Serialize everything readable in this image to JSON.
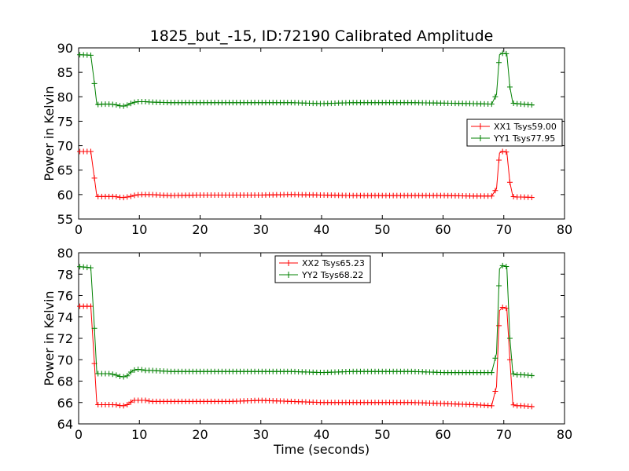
{
  "title": "1825_but_-15, ID:72190 Calibrated Amplitude",
  "chart_data": [
    {
      "type": "line",
      "ylabel": "Power in Kelvin",
      "xlabel": "",
      "xlim": [
        0,
        80
      ],
      "ylim": [
        55,
        90
      ],
      "xticks": [
        0,
        10,
        20,
        30,
        40,
        50,
        60,
        70,
        80
      ],
      "yticks": [
        55,
        60,
        65,
        70,
        75,
        80,
        85,
        90
      ],
      "marker": "+",
      "legend_placement": "right",
      "series": [
        {
          "name": "XX1 Tsys59.00",
          "color": "#ff0000",
          "x": [
            0.2,
            2,
            2.5,
            3,
            4,
            5,
            6,
            7,
            7.5,
            8,
            8.5,
            9,
            9.5,
            10,
            11,
            12,
            15,
            20,
            25,
            30,
            35,
            40,
            45,
            50,
            55,
            60,
            65,
            68,
            68.8,
            69.3,
            69.8,
            70.5,
            71,
            71.5,
            72,
            73,
            75
          ],
          "y": [
            68.8,
            68.8,
            64.3,
            59.6,
            59.6,
            59.6,
            59.6,
            59.4,
            59.4,
            59.5,
            59.6,
            59.8,
            59.9,
            60.0,
            60.0,
            60.0,
            59.8,
            59.9,
            59.9,
            59.9,
            60.0,
            59.9,
            59.8,
            59.8,
            59.8,
            59.8,
            59.7,
            59.7,
            61.2,
            68.5,
            68.8,
            68.7,
            62.5,
            59.6,
            59.5,
            59.5,
            59.4
          ]
        },
        {
          "name": "YY1 Tsys77.95",
          "color": "#008000",
          "x": [
            0.2,
            2,
            2.5,
            3,
            4,
            5,
            6,
            7,
            7.5,
            8,
            8.5,
            9,
            9.5,
            10,
            11,
            12,
            15,
            20,
            25,
            30,
            35,
            40,
            45,
            50,
            55,
            60,
            65,
            68,
            68.8,
            69.3,
            69.8,
            70.5,
            71,
            71.5,
            72,
            73,
            75
          ],
          "y": [
            88.6,
            88.5,
            83.8,
            78.4,
            78.5,
            78.5,
            78.4,
            78.1,
            78.1,
            78.3,
            78.6,
            78.8,
            79.0,
            79.0,
            79.0,
            78.9,
            78.8,
            78.8,
            78.8,
            78.8,
            78.8,
            78.6,
            78.8,
            78.8,
            78.8,
            78.7,
            78.6,
            78.5,
            80.5,
            88.6,
            88.9,
            88.8,
            82.0,
            78.7,
            78.6,
            78.5,
            78.3
          ]
        }
      ]
    },
    {
      "type": "line",
      "ylabel": "Power in Kelvin",
      "xlabel": "Time (seconds)",
      "xlim": [
        0,
        80
      ],
      "ylim": [
        64,
        80
      ],
      "xticks": [
        0,
        10,
        20,
        30,
        40,
        50,
        60,
        70,
        80
      ],
      "yticks": [
        64,
        66,
        68,
        70,
        72,
        74,
        76,
        78,
        80
      ],
      "marker": "+",
      "legend_placement": "upper-center",
      "series": [
        {
          "name": "XX2 Tsys65.23",
          "color": "#ff0000",
          "x": [
            0.2,
            2,
            2.5,
            3,
            4,
            5,
            6,
            7,
            7.5,
            8,
            8.5,
            9,
            9.5,
            10,
            11,
            12,
            15,
            20,
            25,
            30,
            35,
            40,
            45,
            50,
            55,
            60,
            65,
            68,
            68.8,
            69.3,
            69.8,
            70.5,
            71,
            71.5,
            72,
            73,
            75
          ],
          "y": [
            75.0,
            75.0,
            70.6,
            65.8,
            65.8,
            65.8,
            65.8,
            65.7,
            65.7,
            65.8,
            66.0,
            66.2,
            66.2,
            66.2,
            66.2,
            66.1,
            66.1,
            66.1,
            66.1,
            66.2,
            66.1,
            66.0,
            66.0,
            66.0,
            66.0,
            65.9,
            65.8,
            65.7,
            67.5,
            74.6,
            74.9,
            74.8,
            70.0,
            65.8,
            65.7,
            65.7,
            65.6
          ]
        },
        {
          "name": "YY2 Tsys68.22",
          "color": "#008000",
          "x": [
            0.2,
            2,
            2.5,
            3,
            4,
            5,
            6,
            7,
            7.5,
            8,
            8.5,
            9,
            9.5,
            10,
            11,
            12,
            15,
            20,
            25,
            30,
            35,
            40,
            45,
            50,
            55,
            60,
            65,
            68,
            68.8,
            69.3,
            69.8,
            70.5,
            71,
            71.5,
            72,
            73,
            75
          ],
          "y": [
            78.7,
            78.6,
            74.0,
            68.7,
            68.7,
            68.7,
            68.6,
            68.4,
            68.4,
            68.5,
            68.8,
            69.0,
            69.1,
            69.1,
            69.0,
            69.0,
            68.9,
            68.9,
            68.9,
            68.9,
            68.9,
            68.8,
            68.9,
            68.9,
            68.9,
            68.8,
            68.8,
            68.8,
            70.6,
            78.5,
            78.8,
            78.7,
            72.0,
            68.7,
            68.6,
            68.6,
            68.5
          ]
        }
      ]
    }
  ]
}
